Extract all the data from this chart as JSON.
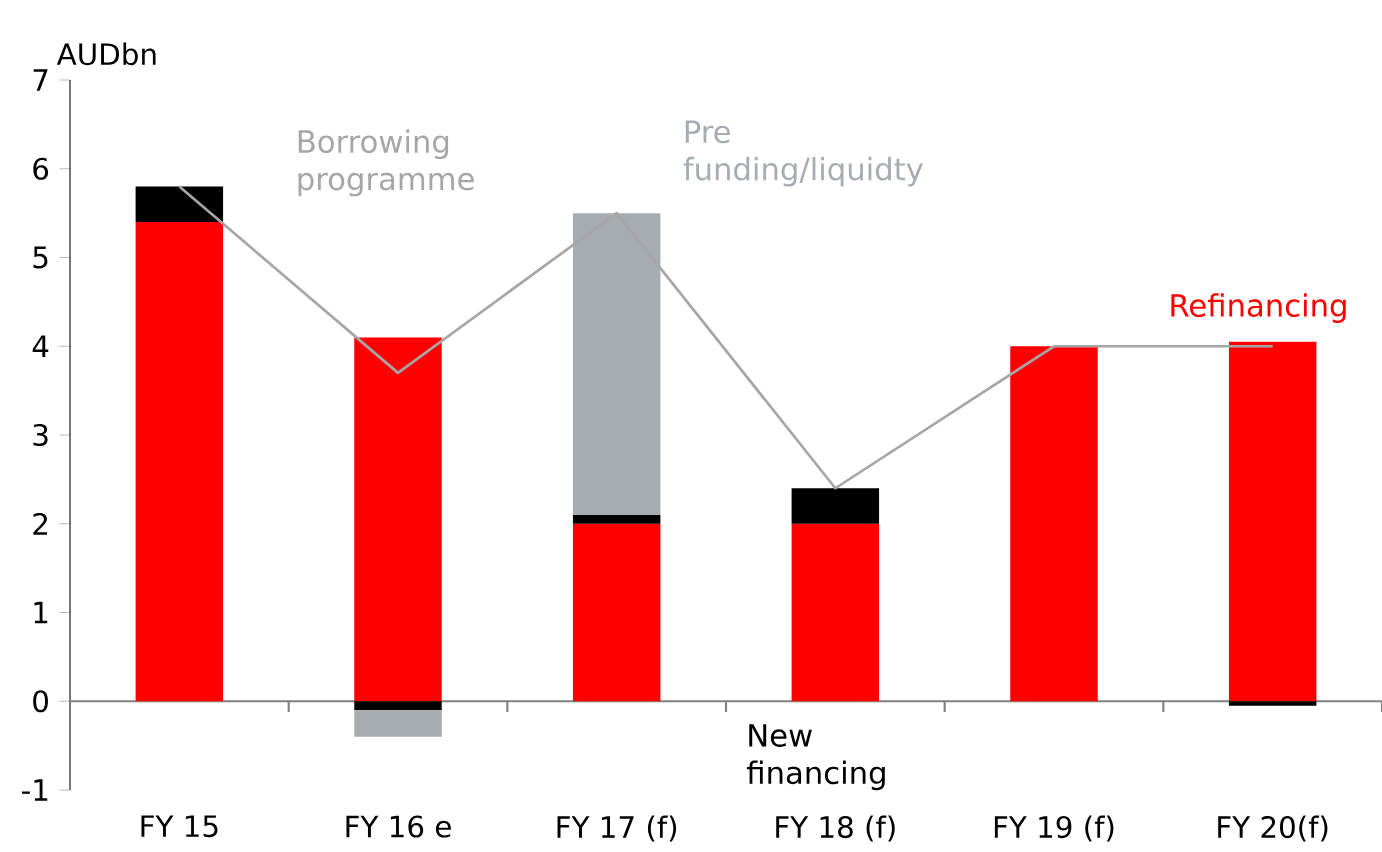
{
  "chart_data": {
    "type": "bar",
    "stacked": true,
    "ylabel": "AUDbn",
    "categories": [
      "FY 15",
      "FY 16 e",
      "FY 17 (f)",
      "FY 18 (f)",
      "FY 19 (f)",
      "FY 20(f)"
    ],
    "series": [
      {
        "name": "Refinancing",
        "color": "#ff0000",
        "values": [
          5.4,
          4.1,
          2.0,
          2.0,
          4.0,
          4.05
        ]
      },
      {
        "name": "New financing",
        "color": "#000000",
        "values": [
          0.4,
          -0.1,
          0.1,
          0.4,
          null,
          -0.05
        ]
      },
      {
        "name": "Pre funding/liquidty",
        "color": "#a6acaf",
        "values": [
          null,
          -0.3,
          3.4,
          null,
          null,
          null
        ]
      },
      {
        "name": "Borrowing programme",
        "type": "line",
        "color": "#a6a6a6",
        "values": [
          5.8,
          3.7,
          5.5,
          2.4,
          4.0,
          4.0
        ]
      }
    ],
    "ylim": [
      -1,
      7
    ],
    "yticks": [
      -1,
      0,
      1,
      2,
      3,
      4,
      5,
      6,
      7
    ]
  }
}
